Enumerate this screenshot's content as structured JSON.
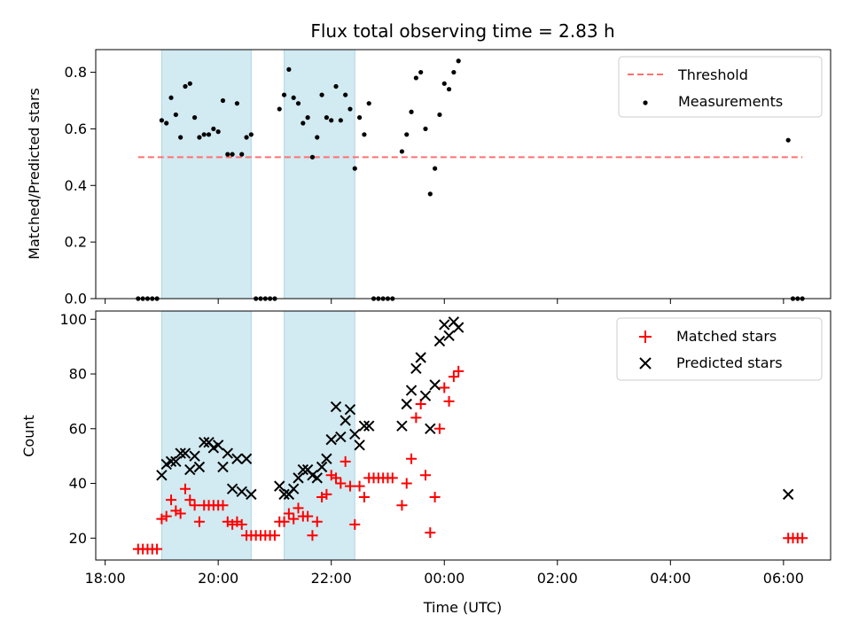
{
  "chart_data": [
    {
      "type": "scatter",
      "title": "Flux total observing time = 2.83 h",
      "xlabel": "",
      "ylabel": "Matched/Predicted stars",
      "xlim": [
        "17:50",
        "06:50"
      ],
      "ylim": [
        0,
        0.88
      ],
      "y_ticks": [
        "0.0",
        "0.2",
        "0.4",
        "0.6",
        "0.8"
      ],
      "grid": false,
      "legend_position": "top-right",
      "shaded_intervals": [
        [
          "19:00",
          "20:35"
        ],
        [
          "21:10",
          "22:25"
        ]
      ],
      "threshold": {
        "name": "Threshold",
        "value": 0.5,
        "x_range": [
          "18:35",
          "06:20"
        ],
        "color": "#ff7070",
        "style": "dashed"
      },
      "series": [
        {
          "name": "Measurements",
          "marker": "dot",
          "color": "#000000",
          "points": [
            [
              "18:35",
              0.0
            ],
            [
              "18:40",
              0.0
            ],
            [
              "18:45",
              0.0
            ],
            [
              "18:50",
              0.0
            ],
            [
              "18:55",
              0.0
            ],
            [
              "19:00",
              0.63
            ],
            [
              "19:05",
              0.62
            ],
            [
              "19:10",
              0.71
            ],
            [
              "19:15",
              0.65
            ],
            [
              "19:20",
              0.57
            ],
            [
              "19:25",
              0.75
            ],
            [
              "19:30",
              0.76
            ],
            [
              "19:35",
              0.64
            ],
            [
              "19:40",
              0.57
            ],
            [
              "19:45",
              0.58
            ],
            [
              "19:50",
              0.58
            ],
            [
              "19:55",
              0.6
            ],
            [
              "20:00",
              0.59
            ],
            [
              "20:05",
              0.7
            ],
            [
              "20:10",
              0.51
            ],
            [
              "20:15",
              0.51
            ],
            [
              "20:20",
              0.69
            ],
            [
              "20:25",
              0.51
            ],
            [
              "20:30",
              0.57
            ],
            [
              "20:35",
              0.58
            ],
            [
              "20:40",
              0.0
            ],
            [
              "20:45",
              0.0
            ],
            [
              "20:50",
              0.0
            ],
            [
              "20:55",
              0.0
            ],
            [
              "21:00",
              0.0
            ],
            [
              "21:05",
              0.67
            ],
            [
              "21:10",
              0.72
            ],
            [
              "21:15",
              0.81
            ],
            [
              "21:20",
              0.71
            ],
            [
              "21:25",
              0.69
            ],
            [
              "21:30",
              0.62
            ],
            [
              "21:35",
              0.64
            ],
            [
              "21:40",
              0.5
            ],
            [
              "21:45",
              0.57
            ],
            [
              "21:50",
              0.72
            ],
            [
              "21:55",
              0.64
            ],
            [
              "22:00",
              0.63
            ],
            [
              "22:05",
              0.75
            ],
            [
              "22:10",
              0.63
            ],
            [
              "22:15",
              0.72
            ],
            [
              "22:20",
              0.67
            ],
            [
              "22:25",
              0.46
            ],
            [
              "22:30",
              0.64
            ],
            [
              "22:35",
              0.58
            ],
            [
              "22:40",
              0.69
            ],
            [
              "22:45",
              0.0
            ],
            [
              "22:50",
              0.0
            ],
            [
              "22:55",
              0.0
            ],
            [
              "23:00",
              0.0
            ],
            [
              "23:05",
              0.0
            ],
            [
              "23:15",
              0.52
            ],
            [
              "23:20",
              0.58
            ],
            [
              "23:25",
              0.66
            ],
            [
              "23:30",
              0.78
            ],
            [
              "23:35",
              0.8
            ],
            [
              "23:40",
              0.6
            ],
            [
              "23:45",
              0.37
            ],
            [
              "23:50",
              0.46
            ],
            [
              "23:55",
              0.65
            ],
            [
              "00:00",
              0.76
            ],
            [
              "00:05",
              0.74
            ],
            [
              "00:10",
              0.8
            ],
            [
              "00:15",
              0.84
            ],
            [
              "06:05",
              0.56
            ],
            [
              "06:10",
              0.0
            ],
            [
              "06:15",
              0.0
            ],
            [
              "06:20",
              0.0
            ]
          ]
        }
      ]
    },
    {
      "type": "scatter",
      "title": "",
      "xlabel": "Time (UTC)",
      "ylabel": "Count",
      "xlim": [
        "17:50",
        "06:50"
      ],
      "ylim": [
        12,
        103
      ],
      "x_ticks": [
        "18:00",
        "20:00",
        "22:00",
        "00:00",
        "02:00",
        "04:00",
        "06:00"
      ],
      "y_ticks": [
        "20",
        "40",
        "60",
        "80",
        "100"
      ],
      "grid": false,
      "legend_position": "top-right",
      "shaded_intervals": [
        [
          "19:00",
          "20:35"
        ],
        [
          "21:10",
          "22:25"
        ]
      ],
      "series": [
        {
          "name": "Matched stars",
          "marker": "plus",
          "color": "#ff0000",
          "points": [
            [
              "18:35",
              16
            ],
            [
              "18:40",
              16
            ],
            [
              "18:45",
              16
            ],
            [
              "18:50",
              16
            ],
            [
              "18:55",
              16
            ],
            [
              "19:00",
              27
            ],
            [
              "19:05",
              28
            ],
            [
              "19:10",
              34
            ],
            [
              "19:15",
              30
            ],
            [
              "19:20",
              29
            ],
            [
              "19:25",
              38
            ],
            [
              "19:30",
              34
            ],
            [
              "19:35",
              32
            ],
            [
              "19:40",
              26
            ],
            [
              "19:45",
              32
            ],
            [
              "19:50",
              32
            ],
            [
              "19:55",
              32
            ],
            [
              "20:00",
              32
            ],
            [
              "20:05",
              32
            ],
            [
              "20:10",
              26
            ],
            [
              "20:15",
              25
            ],
            [
              "20:20",
              26
            ],
            [
              "20:25",
              25
            ],
            [
              "20:30",
              21
            ],
            [
              "20:35",
              21
            ],
            [
              "20:40",
              21
            ],
            [
              "20:45",
              21
            ],
            [
              "20:50",
              21
            ],
            [
              "20:55",
              21
            ],
            [
              "21:00",
              21
            ],
            [
              "21:05",
              26
            ],
            [
              "21:10",
              26
            ],
            [
              "21:15",
              29
            ],
            [
              "21:20",
              27
            ],
            [
              "21:25",
              31
            ],
            [
              "21:30",
              28
            ],
            [
              "21:35",
              28
            ],
            [
              "21:40",
              21
            ],
            [
              "21:45",
              26
            ],
            [
              "21:50",
              35
            ],
            [
              "21:55",
              36
            ],
            [
              "22:00",
              43
            ],
            [
              "22:05",
              42
            ],
            [
              "22:10",
              40
            ],
            [
              "22:15",
              48
            ],
            [
              "22:20",
              39
            ],
            [
              "22:25",
              25
            ],
            [
              "22:30",
              39
            ],
            [
              "22:35",
              35
            ],
            [
              "22:40",
              42
            ],
            [
              "22:45",
              42
            ],
            [
              "22:50",
              42
            ],
            [
              "22:55",
              42
            ],
            [
              "23:00",
              42
            ],
            [
              "23:05",
              42
            ],
            [
              "23:15",
              32
            ],
            [
              "23:20",
              40
            ],
            [
              "23:25",
              49
            ],
            [
              "23:30",
              64
            ],
            [
              "23:35",
              69
            ],
            [
              "23:40",
              43
            ],
            [
              "23:45",
              22
            ],
            [
              "23:50",
              35
            ],
            [
              "23:55",
              60
            ],
            [
              "00:00",
              75
            ],
            [
              "00:05",
              70
            ],
            [
              "00:10",
              79
            ],
            [
              "00:15",
              81
            ],
            [
              "06:05",
              20
            ],
            [
              "06:10",
              20
            ],
            [
              "06:15",
              20
            ],
            [
              "06:20",
              20
            ]
          ]
        },
        {
          "name": "Predicted stars",
          "marker": "x",
          "color": "#000000",
          "points": [
            [
              "19:00",
              43
            ],
            [
              "19:05",
              47
            ],
            [
              "19:10",
              48
            ],
            [
              "19:15",
              48
            ],
            [
              "19:20",
              51
            ],
            [
              "19:25",
              51
            ],
            [
              "19:30",
              45
            ],
            [
              "19:35",
              50
            ],
            [
              "19:40",
              46
            ],
            [
              "19:45",
              55
            ],
            [
              "19:50",
              55
            ],
            [
              "19:55",
              53
            ],
            [
              "20:00",
              54
            ],
            [
              "20:05",
              46
            ],
            [
              "20:10",
              51
            ],
            [
              "20:15",
              38
            ],
            [
              "20:20",
              49
            ],
            [
              "20:25",
              37
            ],
            [
              "20:30",
              49
            ],
            [
              "20:35",
              36
            ],
            [
              "21:05",
              39
            ],
            [
              "21:10",
              36
            ],
            [
              "21:15",
              36
            ],
            [
              "21:20",
              38
            ],
            [
              "21:25",
              42
            ],
            [
              "21:30",
              45
            ],
            [
              "21:35",
              45
            ],
            [
              "21:40",
              43
            ],
            [
              "21:45",
              42
            ],
            [
              "21:50",
              46
            ],
            [
              "21:55",
              49
            ],
            [
              "22:00",
              56
            ],
            [
              "22:05",
              68
            ],
            [
              "22:10",
              57
            ],
            [
              "22:15",
              63
            ],
            [
              "22:20",
              67
            ],
            [
              "22:25",
              58
            ],
            [
              "22:30",
              54
            ],
            [
              "22:35",
              61
            ],
            [
              "22:40",
              61
            ],
            [
              "23:15",
              61
            ],
            [
              "23:20",
              69
            ],
            [
              "23:25",
              74
            ],
            [
              "23:30",
              82
            ],
            [
              "23:35",
              86
            ],
            [
              "23:40",
              72
            ],
            [
              "23:45",
              60
            ],
            [
              "23:50",
              76
            ],
            [
              "23:55",
              92
            ],
            [
              "00:00",
              98
            ],
            [
              "00:05",
              94
            ],
            [
              "00:10",
              99
            ],
            [
              "00:15",
              97
            ],
            [
              "06:05",
              36
            ]
          ]
        }
      ]
    }
  ],
  "colors": {
    "shade": "#add8e6",
    "threshold": "#ff7070",
    "matched": "#ff0000",
    "predicted": "#000000",
    "measurement": "#000000"
  }
}
